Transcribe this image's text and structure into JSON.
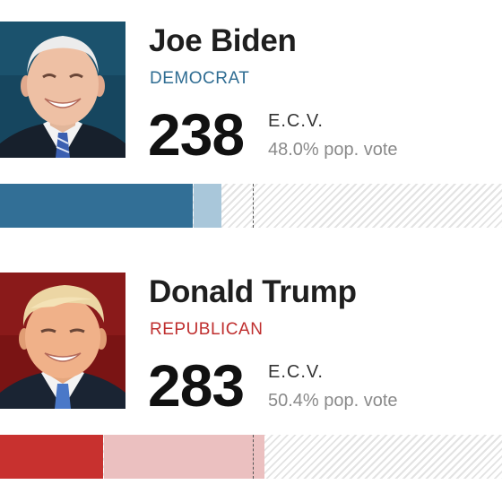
{
  "candidates": [
    {
      "name": "Joe Biden",
      "party": "DEMOCRAT",
      "electoral_votes": "238",
      "ecv_label": "E.C.V.",
      "popular_vote": "48.0% pop. vote",
      "party_color": "#2e6c92",
      "bar_won_color": "#326f96",
      "bar_lead_color": "#a9c7da",
      "bar_won_fraction": 0.384,
      "bar_lead_fraction": 0.055
    },
    {
      "name": "Donald Trump",
      "party": "REPUBLICAN",
      "electoral_votes": "283",
      "ecv_label": "E.C.V.",
      "popular_vote": "50.4% pop. vote",
      "party_color": "#bf2e2e",
      "bar_won_color": "#c8312f",
      "bar_lead_color": "#ebc0c0",
      "bar_won_fraction": 0.205,
      "bar_lead_fraction": 0.32
    }
  ],
  "threshold_fraction": 0.504
}
